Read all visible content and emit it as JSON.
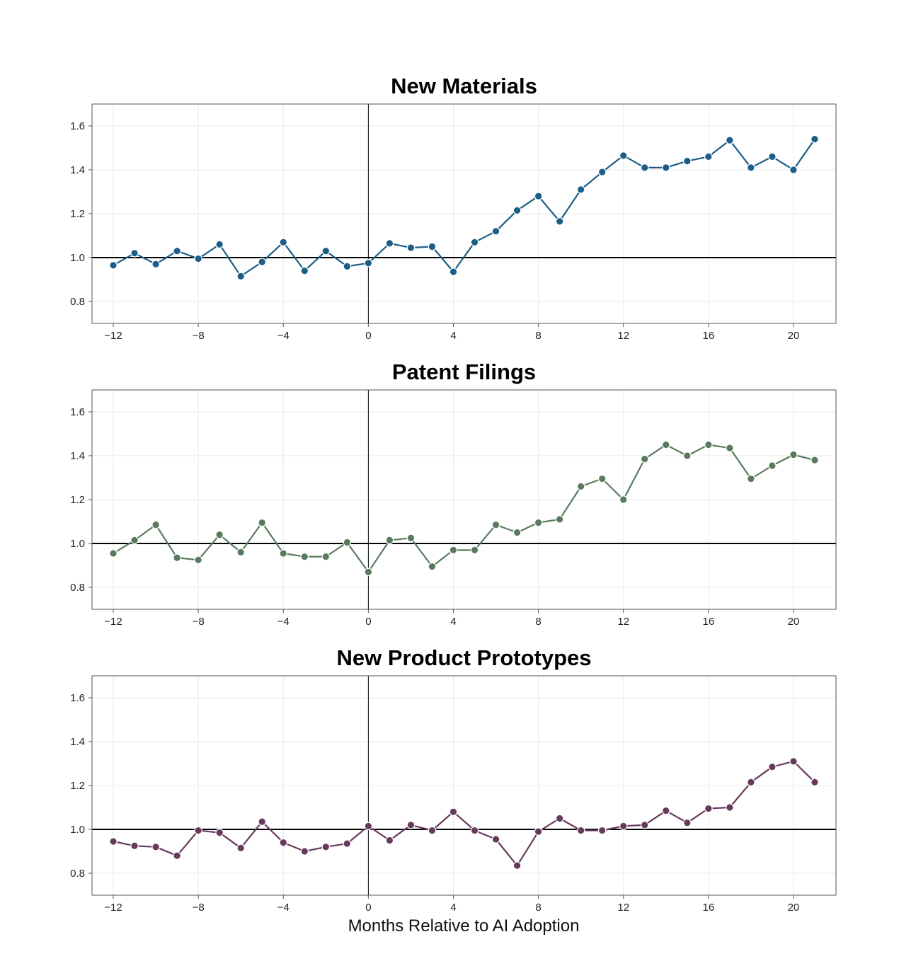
{
  "chart_data": {
    "type": "line",
    "xlabel": "Months Relative to AI Adoption",
    "x_ticks": [
      -12,
      -8,
      -4,
      0,
      4,
      8,
      12,
      16,
      20
    ],
    "y_ticks": [
      0.8,
      1.0,
      1.2,
      1.4,
      1.6
    ],
    "xlim": [
      -13,
      22
    ],
    "ylim": [
      0.7,
      1.7
    ],
    "reference_lines": {
      "horizontal_y": 1.0,
      "vertical_x": 0
    },
    "grid": true,
    "x": [
      -12,
      -11,
      -10,
      -9,
      -8,
      -7,
      -6,
      -5,
      -4,
      -3,
      -2,
      -1,
      0,
      1,
      2,
      3,
      4,
      5,
      6,
      7,
      8,
      9,
      10,
      11,
      12,
      13,
      14,
      15,
      16,
      17,
      18,
      19,
      20,
      21
    ],
    "panels": [
      {
        "title": "New Materials",
        "color": "#1b5e87",
        "values": [
          0.965,
          1.02,
          0.97,
          1.03,
          0.995,
          1.06,
          0.915,
          0.98,
          1.07,
          0.94,
          1.03,
          0.96,
          0.975,
          1.065,
          1.045,
          1.05,
          0.935,
          1.07,
          1.12,
          1.215,
          1.28,
          1.165,
          1.31,
          1.39,
          1.465,
          1.41,
          1.41,
          1.44,
          1.46,
          1.535,
          1.41,
          1.46,
          1.4,
          1.54
        ]
      },
      {
        "title": "Patent Filings",
        "color": "#5a7a5e",
        "values": [
          0.955,
          1.015,
          1.085,
          0.935,
          0.925,
          1.04,
          0.96,
          1.095,
          0.955,
          0.94,
          0.94,
          1.005,
          0.87,
          1.015,
          1.025,
          0.895,
          0.97,
          0.97,
          1.085,
          1.05,
          1.095,
          1.11,
          1.26,
          1.295,
          1.2,
          1.385,
          1.45,
          1.4,
          1.45,
          1.435,
          1.295,
          1.355,
          1.405,
          1.38
        ]
      },
      {
        "title": "New Product Prototypes",
        "color": "#673a5c",
        "values": [
          0.945,
          0.925,
          0.92,
          0.88,
          0.995,
          0.985,
          0.915,
          1.035,
          0.94,
          0.9,
          0.92,
          0.935,
          1.015,
          0.95,
          1.02,
          0.995,
          1.08,
          0.995,
          0.955,
          0.835,
          0.99,
          1.05,
          0.995,
          0.995,
          1.015,
          1.02,
          1.085,
          1.03,
          1.095,
          1.1,
          1.215,
          1.285,
          1.31,
          1.215
        ]
      }
    ]
  }
}
